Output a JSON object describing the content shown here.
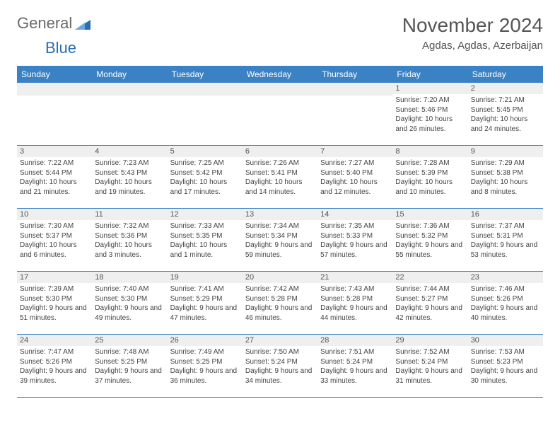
{
  "logo": {
    "word1": "General",
    "word2": "Blue",
    "shape_color": "#2a6db5"
  },
  "title": "November 2024",
  "location": "Agdas, Agdas, Azerbaijan",
  "colors": {
    "header_bg": "#3b82c4",
    "header_text": "#ffffff",
    "daynum_bg": "#efefef",
    "border": "#3b82c4",
    "body_text": "#444444",
    "title_text": "#555555"
  },
  "day_names": [
    "Sunday",
    "Monday",
    "Tuesday",
    "Wednesday",
    "Thursday",
    "Friday",
    "Saturday"
  ],
  "weeks": [
    [
      null,
      null,
      null,
      null,
      null,
      {
        "n": "1",
        "sr": "7:20 AM",
        "ss": "5:46 PM",
        "dl": "10 hours and 26 minutes."
      },
      {
        "n": "2",
        "sr": "7:21 AM",
        "ss": "5:45 PM",
        "dl": "10 hours and 24 minutes."
      }
    ],
    [
      {
        "n": "3",
        "sr": "7:22 AM",
        "ss": "5:44 PM",
        "dl": "10 hours and 21 minutes."
      },
      {
        "n": "4",
        "sr": "7:23 AM",
        "ss": "5:43 PM",
        "dl": "10 hours and 19 minutes."
      },
      {
        "n": "5",
        "sr": "7:25 AM",
        "ss": "5:42 PM",
        "dl": "10 hours and 17 minutes."
      },
      {
        "n": "6",
        "sr": "7:26 AM",
        "ss": "5:41 PM",
        "dl": "10 hours and 14 minutes."
      },
      {
        "n": "7",
        "sr": "7:27 AM",
        "ss": "5:40 PM",
        "dl": "10 hours and 12 minutes."
      },
      {
        "n": "8",
        "sr": "7:28 AM",
        "ss": "5:39 PM",
        "dl": "10 hours and 10 minutes."
      },
      {
        "n": "9",
        "sr": "7:29 AM",
        "ss": "5:38 PM",
        "dl": "10 hours and 8 minutes."
      }
    ],
    [
      {
        "n": "10",
        "sr": "7:30 AM",
        "ss": "5:37 PM",
        "dl": "10 hours and 6 minutes."
      },
      {
        "n": "11",
        "sr": "7:32 AM",
        "ss": "5:36 PM",
        "dl": "10 hours and 3 minutes."
      },
      {
        "n": "12",
        "sr": "7:33 AM",
        "ss": "5:35 PM",
        "dl": "10 hours and 1 minute."
      },
      {
        "n": "13",
        "sr": "7:34 AM",
        "ss": "5:34 PM",
        "dl": "9 hours and 59 minutes."
      },
      {
        "n": "14",
        "sr": "7:35 AM",
        "ss": "5:33 PM",
        "dl": "9 hours and 57 minutes."
      },
      {
        "n": "15",
        "sr": "7:36 AM",
        "ss": "5:32 PM",
        "dl": "9 hours and 55 minutes."
      },
      {
        "n": "16",
        "sr": "7:37 AM",
        "ss": "5:31 PM",
        "dl": "9 hours and 53 minutes."
      }
    ],
    [
      {
        "n": "17",
        "sr": "7:39 AM",
        "ss": "5:30 PM",
        "dl": "9 hours and 51 minutes."
      },
      {
        "n": "18",
        "sr": "7:40 AM",
        "ss": "5:30 PM",
        "dl": "9 hours and 49 minutes."
      },
      {
        "n": "19",
        "sr": "7:41 AM",
        "ss": "5:29 PM",
        "dl": "9 hours and 47 minutes."
      },
      {
        "n": "20",
        "sr": "7:42 AM",
        "ss": "5:28 PM",
        "dl": "9 hours and 46 minutes."
      },
      {
        "n": "21",
        "sr": "7:43 AM",
        "ss": "5:28 PM",
        "dl": "9 hours and 44 minutes."
      },
      {
        "n": "22",
        "sr": "7:44 AM",
        "ss": "5:27 PM",
        "dl": "9 hours and 42 minutes."
      },
      {
        "n": "23",
        "sr": "7:46 AM",
        "ss": "5:26 PM",
        "dl": "9 hours and 40 minutes."
      }
    ],
    [
      {
        "n": "24",
        "sr": "7:47 AM",
        "ss": "5:26 PM",
        "dl": "9 hours and 39 minutes."
      },
      {
        "n": "25",
        "sr": "7:48 AM",
        "ss": "5:25 PM",
        "dl": "9 hours and 37 minutes."
      },
      {
        "n": "26",
        "sr": "7:49 AM",
        "ss": "5:25 PM",
        "dl": "9 hours and 36 minutes."
      },
      {
        "n": "27",
        "sr": "7:50 AM",
        "ss": "5:24 PM",
        "dl": "9 hours and 34 minutes."
      },
      {
        "n": "28",
        "sr": "7:51 AM",
        "ss": "5:24 PM",
        "dl": "9 hours and 33 minutes."
      },
      {
        "n": "29",
        "sr": "7:52 AM",
        "ss": "5:24 PM",
        "dl": "9 hours and 31 minutes."
      },
      {
        "n": "30",
        "sr": "7:53 AM",
        "ss": "5:23 PM",
        "dl": "9 hours and 30 minutes."
      }
    ]
  ],
  "labels": {
    "sunrise": "Sunrise:",
    "sunset": "Sunset:",
    "daylight": "Daylight:"
  }
}
